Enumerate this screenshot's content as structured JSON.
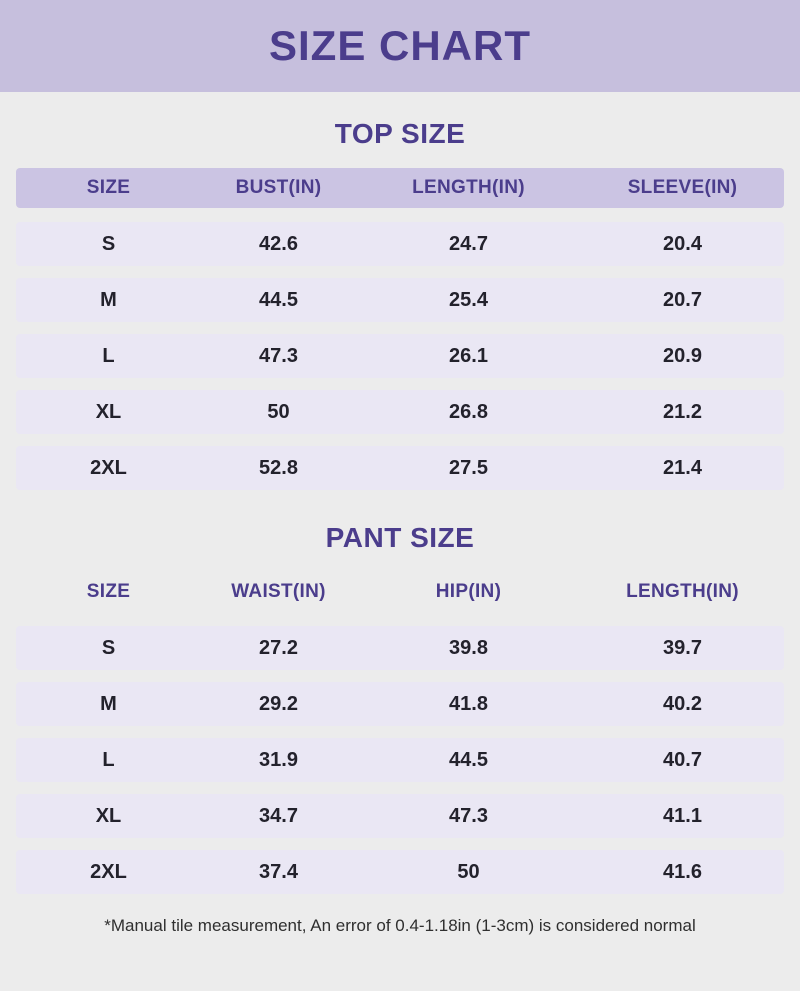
{
  "page": {
    "title": "SIZE CHART",
    "footnote": "*Manual tile measurement, An error of 0.4-1.18in (1-3cm) is considered normal"
  },
  "colors": {
    "page_bg": "#ececec",
    "banner_bg": "#c6bfdd",
    "heading_text": "#4b3d8c",
    "header_row_bg": "#cbc4e3",
    "row_bg": "#eae7f4",
    "row_text": "#23222c",
    "footnote_text": "#2f2f2f"
  },
  "tables": [
    {
      "title": "TOP SIZE",
      "header_style": "lavender",
      "columns": [
        "SIZE",
        "BUST(IN)",
        "LENGTH(IN)",
        "SLEEVE(IN)"
      ],
      "rows": [
        [
          "S",
          "42.6",
          "24.7",
          "20.4"
        ],
        [
          "M",
          "44.5",
          "25.4",
          "20.7"
        ],
        [
          "L",
          "47.3",
          "26.1",
          "20.9"
        ],
        [
          "XL",
          "50",
          "26.8",
          "21.2"
        ],
        [
          "2XL",
          "52.8",
          "27.5",
          "21.4"
        ]
      ]
    },
    {
      "title": "PANT SIZE",
      "header_style": "plain",
      "columns": [
        "SIZE",
        "WAIST(IN)",
        "HIP(IN)",
        "LENGTH(IN)"
      ],
      "rows": [
        [
          "S",
          "27.2",
          "39.8",
          "39.7"
        ],
        [
          "M",
          "29.2",
          "41.8",
          "40.2"
        ],
        [
          "L",
          "31.9",
          "44.5",
          "40.7"
        ],
        [
          "XL",
          "34.7",
          "47.3",
          "41.1"
        ],
        [
          "2XL",
          "37.4",
          "50",
          "41.6"
        ]
      ]
    }
  ]
}
